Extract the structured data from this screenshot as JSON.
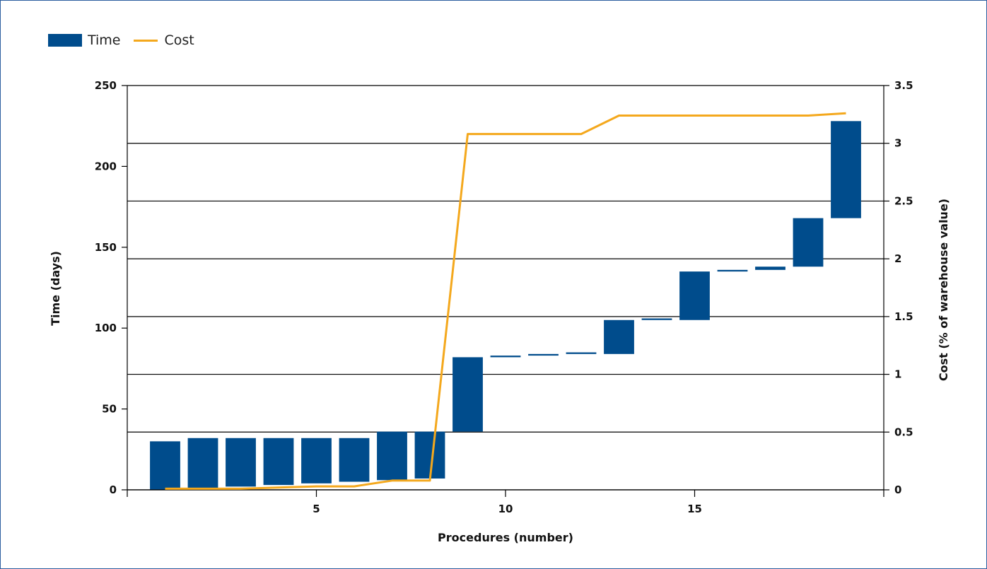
{
  "chart_data": {
    "type": "bar",
    "subtype": "waterfall bars (time) with line on secondary axis (cost)",
    "legend": [
      {
        "label": "Time",
        "kind": "bar",
        "color": "#004c8c"
      },
      {
        "label": "Cost",
        "kind": "line",
        "color": "#f4a81d"
      }
    ],
    "xlabel": "Procedures (number)",
    "ylabel": "Time (days)",
    "y2label": "Cost (% of warehouse value)",
    "xlim": [
      0,
      20
    ],
    "ylim": [
      0,
      250
    ],
    "y2lim": [
      0,
      3.5
    ],
    "xticks": [
      5,
      10,
      15
    ],
    "yticks": [
      0,
      50,
      100,
      150,
      200,
      250
    ],
    "y2ticks": [
      0,
      0.5,
      1,
      1.5,
      2,
      2.5,
      3,
      3.5
    ],
    "y2ticklabels": [
      "0",
      "0.5",
      "1",
      "1.5",
      "2",
      "2.5",
      "3",
      "3.5"
    ],
    "grid": "horizontal at secondary-axis ticks",
    "series": [
      {
        "name": "Time",
        "axis": "left",
        "bars": [
          {
            "x": 1,
            "start": 0,
            "end": 30
          },
          {
            "x": 2,
            "start": 1,
            "end": 32
          },
          {
            "x": 3,
            "start": 2,
            "end": 32
          },
          {
            "x": 4,
            "start": 3,
            "end": 32
          },
          {
            "x": 5,
            "start": 4,
            "end": 32
          },
          {
            "x": 6,
            "start": 5,
            "end": 32
          },
          {
            "x": 7,
            "start": 6,
            "end": 36
          },
          {
            "x": 8,
            "start": 7,
            "end": 36
          },
          {
            "x": 9,
            "start": 36,
            "end": 82
          },
          {
            "x": 10,
            "start": 82,
            "end": 83
          },
          {
            "x": 11,
            "start": 83,
            "end": 84
          },
          {
            "x": 12,
            "start": 84,
            "end": 85
          },
          {
            "x": 13,
            "start": 84,
            "end": 105
          },
          {
            "x": 14,
            "start": 105,
            "end": 106
          },
          {
            "x": 15,
            "start": 105,
            "end": 135
          },
          {
            "x": 16,
            "start": 135,
            "end": 136
          },
          {
            "x": 17,
            "start": 136,
            "end": 138
          },
          {
            "x": 18,
            "start": 138,
            "end": 168
          },
          {
            "x": 19,
            "start": 168,
            "end": 228
          }
        ]
      },
      {
        "name": "Cost",
        "axis": "right",
        "x": [
          1,
          2,
          3,
          4,
          5,
          6,
          7,
          8,
          9,
          10,
          11,
          12,
          13,
          14,
          15,
          16,
          17,
          18,
          19
        ],
        "values": [
          0.01,
          0.01,
          0.01,
          0.02,
          0.03,
          0.03,
          0.08,
          0.08,
          3.08,
          3.08,
          3.08,
          3.08,
          3.24,
          3.24,
          3.24,
          3.24,
          3.24,
          3.24,
          3.26
        ]
      }
    ]
  }
}
